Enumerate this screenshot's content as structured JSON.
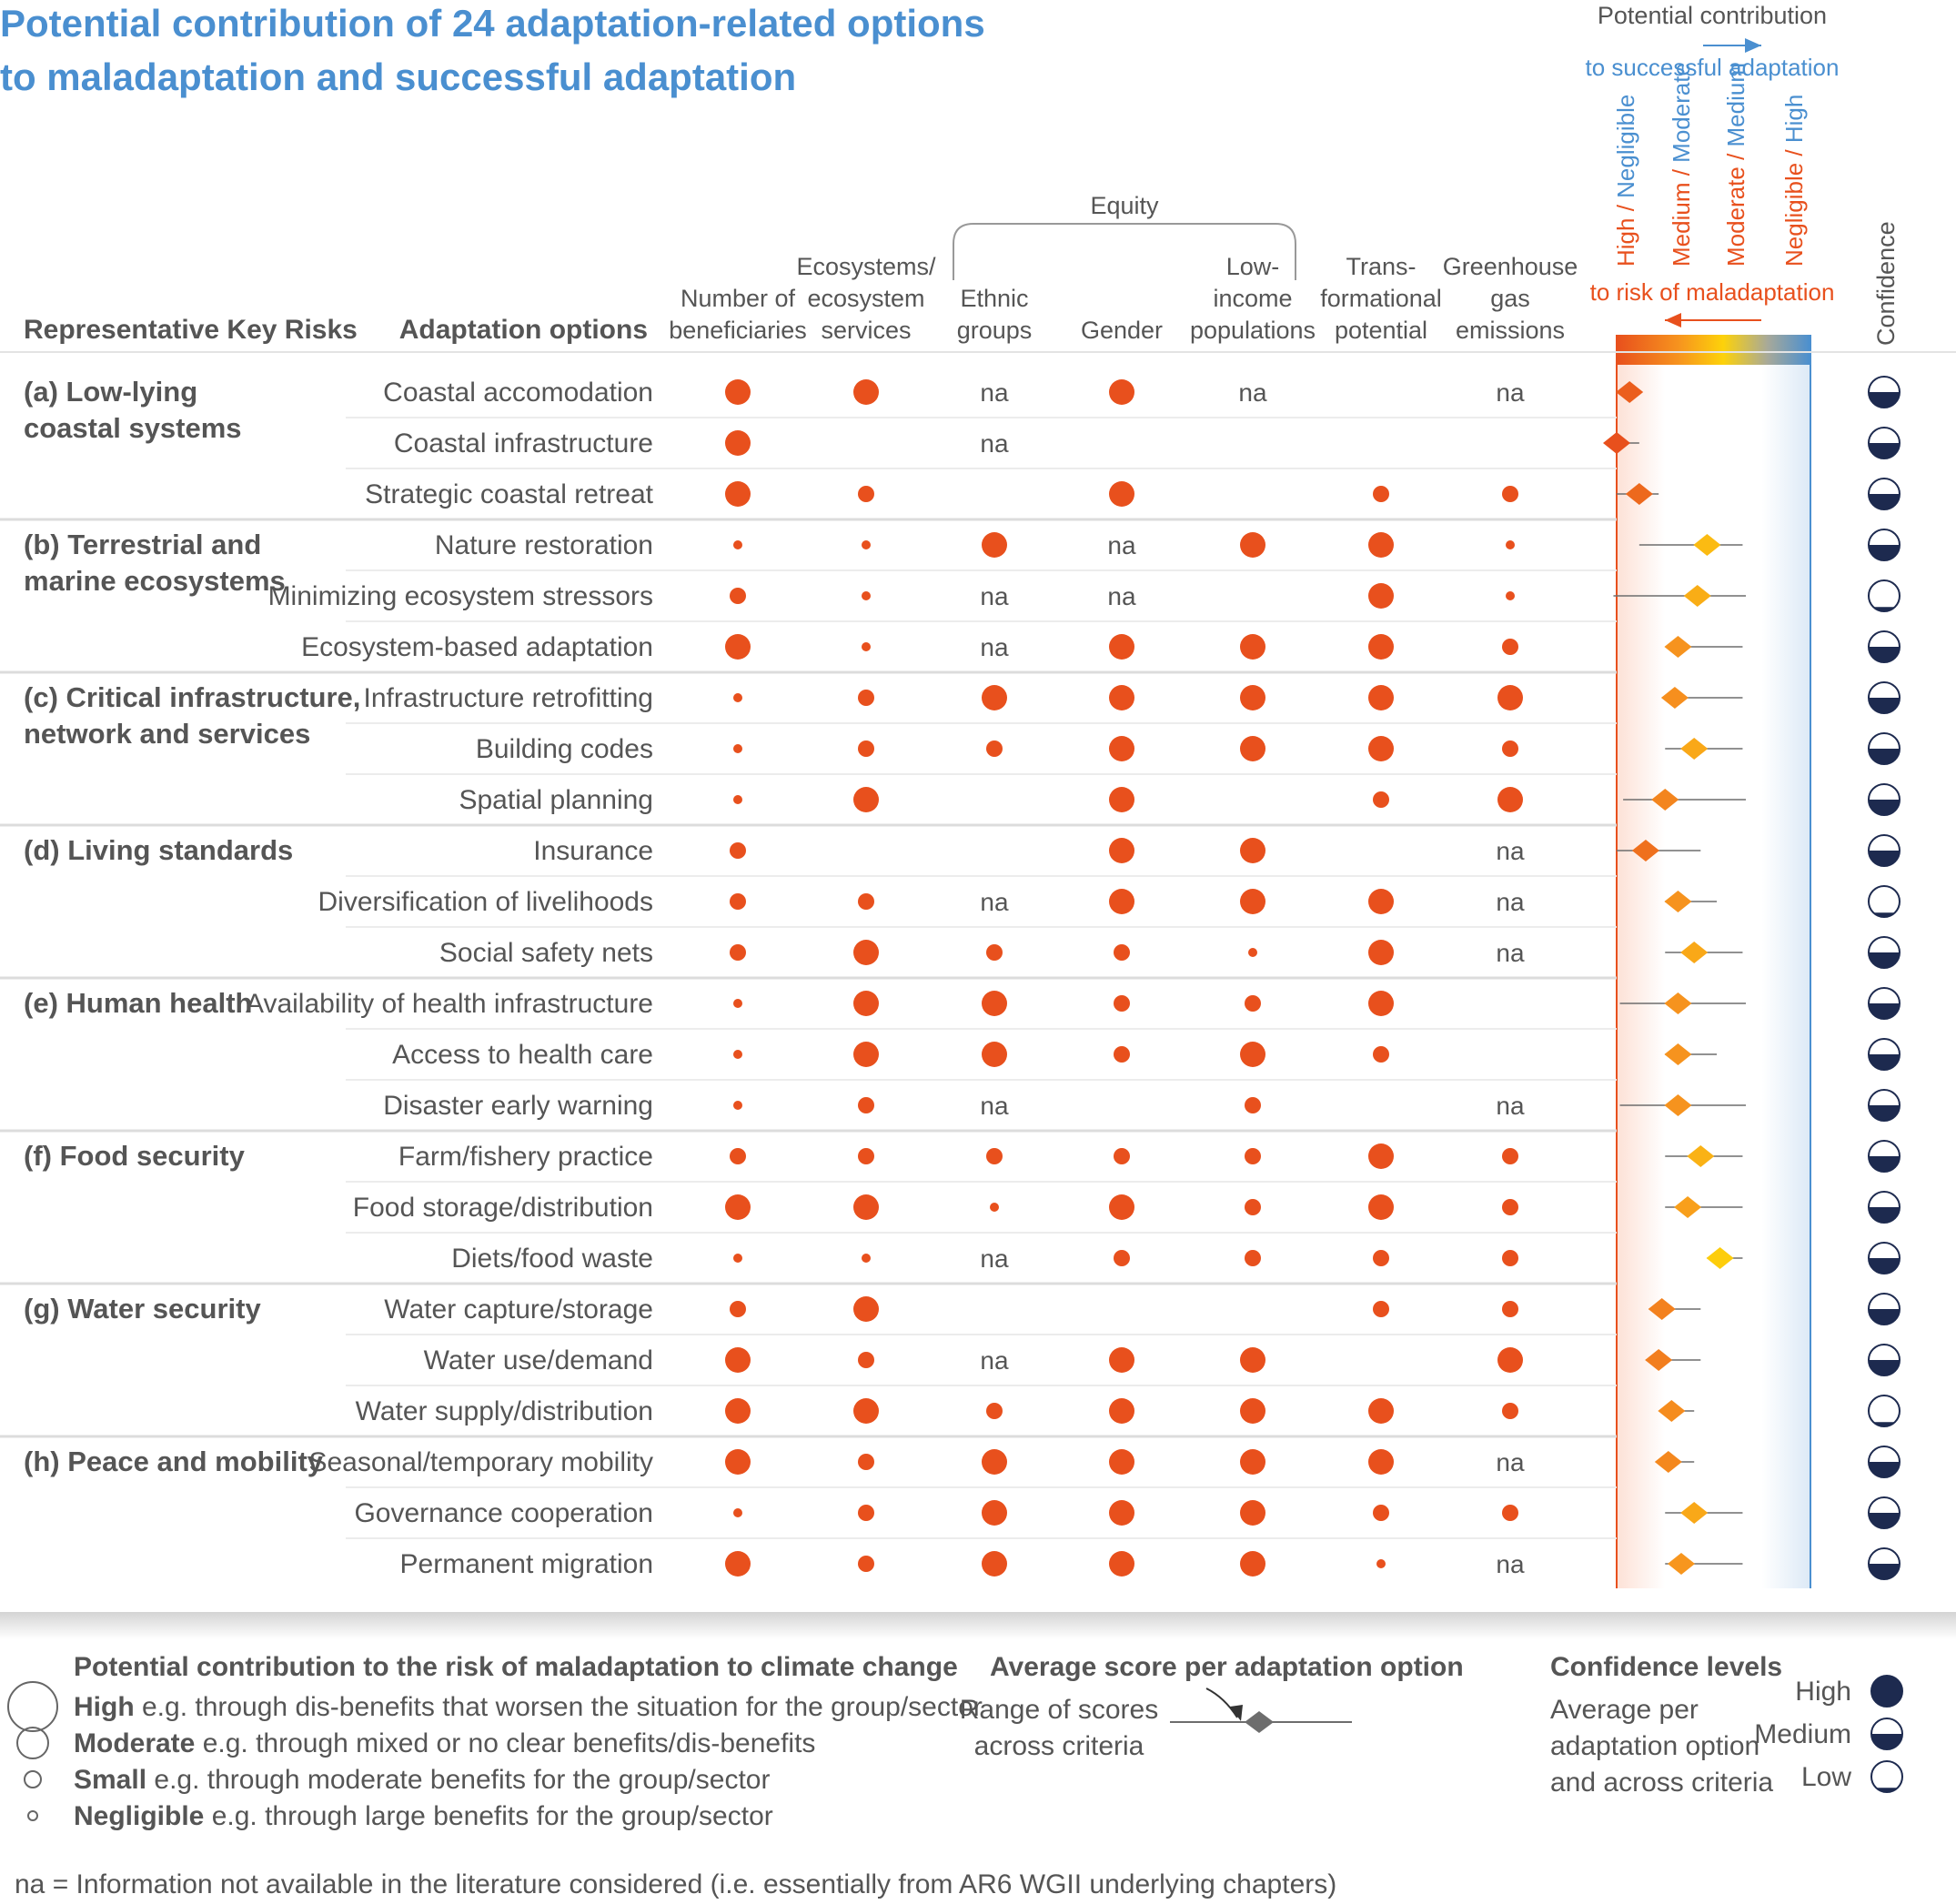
{
  "title": {
    "line1": "Potential contribution of 24 adaptation-related options",
    "line2": "to maladaptation and successful adaptation"
  },
  "colors": {
    "dot": "#e8501d",
    "blue": "#4a8fd0",
    "navy": "#1d2a4f",
    "text": "#555555"
  },
  "headers": {
    "risks": "Representative Key Risks",
    "options": "Adaptation options",
    "equity": "Equity",
    "confidence": "Confidence",
    "criteria": [
      {
        "lines": [
          "Number of",
          "beneficiaries"
        ]
      },
      {
        "lines": [
          "Ecosystems/",
          "ecosystem",
          "services"
        ]
      },
      {
        "lines": [
          "Ethnic",
          "groups"
        ]
      },
      {
        "lines": [
          "Gender"
        ]
      },
      {
        "lines": [
          "Low-",
          "income",
          "populations"
        ]
      },
      {
        "lines": [
          "Trans-",
          "formational",
          "potential"
        ]
      },
      {
        "lines": [
          "Greenhouse",
          "gas",
          "emissions"
        ]
      }
    ]
  },
  "scale": {
    "title": "Potential contribution",
    "to_success": "to successful adaptation",
    "to_mal": "to risk of maladaptation",
    "ticks": [
      {
        "orange": "High",
        "sep": " / ",
        "blue": "Negligible"
      },
      {
        "orange": "Medium",
        "sep": " / ",
        "blue": "Moderate"
      },
      {
        "orange": "Moderate",
        "sep": " / ",
        "blue": "Medium"
      },
      {
        "orange": "Negligible",
        "sep": " / ",
        "blue": "High"
      }
    ]
  },
  "chart_data": {
    "type": "table",
    "size_levels": [
      "negligible",
      "small",
      "moderate",
      "high"
    ],
    "score_axis": {
      "min": 0,
      "max": 3,
      "left": "high risk of maladaptation",
      "right": "high potential for successful adaptation"
    },
    "criteria": [
      "Number of beneficiaries",
      "Ecosystems/ecosystem services",
      "Ethnic groups",
      "Gender",
      "Low-income populations",
      "Transformational potential",
      "Greenhouse gas emissions"
    ],
    "groups": [
      {
        "label": [
          "(a) Low-lying",
          "coastal systems"
        ],
        "options": [
          {
            "name": "Coastal accomodation",
            "scores": [
              2,
              2,
              "na",
              2,
              "na",
              4,
              "na"
            ],
            "avg": 0.2,
            "range": [
              0,
              0.35
            ],
            "confidence": "medium"
          },
          {
            "name": "Coastal infrastructure",
            "scores": [
              2,
              4,
              "na",
              4,
              4,
              4,
              4
            ],
            "avg": 0.0,
            "range": [
              0,
              0.35
            ],
            "confidence": "medium"
          },
          {
            "name": "Strategic coastal retreat",
            "scores": [
              2,
              1,
              4,
              2,
              4,
              1,
              1
            ],
            "avg": 0.35,
            "range": [
              0,
              0.65
            ],
            "confidence": "medium"
          }
        ]
      },
      {
        "label": [
          "(b) Terrestrial and",
          "marine ecosystems"
        ],
        "options": [
          {
            "name": "Nature restoration",
            "scores": [
              0,
              0,
              2,
              "na",
              2,
              2,
              0
            ],
            "avg": 1.4,
            "range": [
              0.35,
              1.95
            ],
            "confidence": "medium"
          },
          {
            "name": "Minimizing ecosystem stressors",
            "scores": [
              1,
              0,
              "na",
              "na",
              4,
              2,
              0
            ],
            "avg": 1.25,
            "range": [
              -0.05,
              2.0
            ],
            "confidence": "low"
          },
          {
            "name": "Ecosystem-based adaptation",
            "scores": [
              2,
              0,
              "na",
              2,
              2,
              2,
              1
            ],
            "avg": 0.95,
            "range": [
              0.85,
              1.95
            ],
            "confidence": "medium"
          }
        ]
      },
      {
        "label": [
          "(c) Critical infrastructure,",
          "network and services"
        ],
        "options": [
          {
            "name": "Infrastructure retrofitting",
            "scores": [
              0,
              1,
              2,
              2,
              2,
              2,
              2
            ],
            "avg": 0.9,
            "range": [
              0.75,
              1.95
            ],
            "confidence": "medium"
          },
          {
            "name": "Building codes",
            "scores": [
              0,
              1,
              1,
              2,
              2,
              2,
              1
            ],
            "avg": 1.2,
            "range": [
              0.75,
              1.95
            ],
            "confidence": "medium"
          },
          {
            "name": "Spatial planning",
            "scores": [
              0,
              2,
              4,
              2,
              4,
              1,
              2
            ],
            "avg": 0.75,
            "range": [
              0.1,
              2.0
            ],
            "confidence": "medium"
          }
        ]
      },
      {
        "label": [
          "(d) Living standards"
        ],
        "options": [
          {
            "name": "Insurance",
            "scores": [
              1,
              4,
              4,
              2,
              2,
              4,
              "na"
            ],
            "avg": 0.45,
            "range": [
              0,
              1.3
            ],
            "confidence": "medium"
          },
          {
            "name": "Diversification of livelihoods",
            "scores": [
              1,
              1,
              "na",
              2,
              2,
              2,
              "na"
            ],
            "avg": 0.95,
            "range": [
              0.75,
              1.55
            ],
            "confidence": "low"
          },
          {
            "name": "Social safety nets",
            "scores": [
              1,
              2,
              1,
              1,
              0,
              2,
              "na"
            ],
            "avg": 1.2,
            "range": [
              0.75,
              1.95
            ],
            "confidence": "medium"
          }
        ]
      },
      {
        "label": [
          "(e) Human health"
        ],
        "options": [
          {
            "name": "Availability of health infrastructure",
            "scores": [
              0,
              2,
              2,
              1,
              1,
              2,
              4
            ],
            "avg": 0.95,
            "range": [
              0.05,
              2.0
            ],
            "confidence": "medium"
          },
          {
            "name": "Access to health care",
            "scores": [
              0,
              2,
              2,
              1,
              2,
              1,
              4
            ],
            "avg": 0.95,
            "range": [
              0.75,
              1.55
            ],
            "confidence": "medium"
          },
          {
            "name": "Disaster early warning",
            "scores": [
              0,
              1,
              "na",
              4,
              1,
              4,
              "na"
            ],
            "avg": 0.95,
            "range": [
              0.05,
              2.0
            ],
            "confidence": "medium"
          }
        ]
      },
      {
        "label": [
          "(f) Food security"
        ],
        "options": [
          {
            "name": "Farm/fishery practice",
            "scores": [
              1,
              1,
              1,
              1,
              1,
              2,
              1
            ],
            "avg": 1.3,
            "range": [
              0.75,
              1.95
            ],
            "confidence": "medium"
          },
          {
            "name": "Food storage/distribution",
            "scores": [
              2,
              2,
              0,
              2,
              1,
              2,
              1
            ],
            "avg": 1.1,
            "range": [
              0.75,
              1.95
            ],
            "confidence": "medium"
          },
          {
            "name": "Diets/food waste",
            "scores": [
              0,
              0,
              "na",
              1,
              1,
              1,
              1
            ],
            "avg": 1.6,
            "range": [
              1.4,
              1.95
            ],
            "confidence": "medium"
          }
        ]
      },
      {
        "label": [
          "(g) Water security"
        ],
        "options": [
          {
            "name": "Water capture/storage",
            "scores": [
              1,
              2,
              4,
              4,
              4,
              1,
              1
            ],
            "avg": 0.7,
            "range": [
              0.5,
              1.3
            ],
            "confidence": "medium"
          },
          {
            "name": "Water use/demand",
            "scores": [
              2,
              1,
              "na",
              2,
              2,
              4,
              2
            ],
            "avg": 0.65,
            "range": [
              0.45,
              1.3
            ],
            "confidence": "medium"
          },
          {
            "name": "Water supply/distribution",
            "scores": [
              2,
              2,
              1,
              2,
              2,
              2,
              1
            ],
            "avg": 0.85,
            "range": [
              0.75,
              1.2
            ],
            "confidence": "low"
          }
        ]
      },
      {
        "label": [
          "(h) Peace and mobility"
        ],
        "options": [
          {
            "name": "Seasonal/temporary mobility",
            "scores": [
              2,
              1,
              2,
              2,
              2,
              2,
              "na"
            ],
            "avg": 0.8,
            "range": [
              0.75,
              1.2
            ],
            "confidence": "medium"
          },
          {
            "name": "Governance cooperation",
            "scores": [
              0,
              1,
              2,
              2,
              2,
              1,
              1
            ],
            "avg": 1.2,
            "range": [
              0.75,
              1.95
            ],
            "confidence": "medium"
          },
          {
            "name": "Permanent migration",
            "scores": [
              2,
              1,
              2,
              2,
              2,
              0,
              "na"
            ],
            "avg": 1.0,
            "range": [
              0.75,
              1.95
            ],
            "confidence": "medium"
          }
        ]
      }
    ]
  },
  "legend": {
    "size_title": "Potential contribution to the risk of maladaptation to climate change",
    "levels": [
      {
        "bold": "High",
        "text": " e.g. through dis-benefits that worsen the situation for the group/sector"
      },
      {
        "bold": "Moderate",
        "text": " e.g. through mixed or no clear benefits/dis-benefits"
      },
      {
        "bold": "Small",
        "text": " e.g. through moderate benefits for the group/sector"
      },
      {
        "bold": "Negligible",
        "text": " e.g. through large benefits for the group/sector"
      }
    ],
    "avg_title": "Average score per adaptation option",
    "range_lines": [
      "Range of scores",
      "across criteria"
    ],
    "conf_title": "Confidence levels",
    "conf_lines": [
      "Average per",
      "adaptation option",
      "and across criteria"
    ],
    "conf_levels": [
      "High",
      "Medium",
      "Low"
    ]
  },
  "na_label": "na",
  "footnote": "na = Information not available in the literature considered (i.e. essentially from AR6 WGII underlying chapters)"
}
